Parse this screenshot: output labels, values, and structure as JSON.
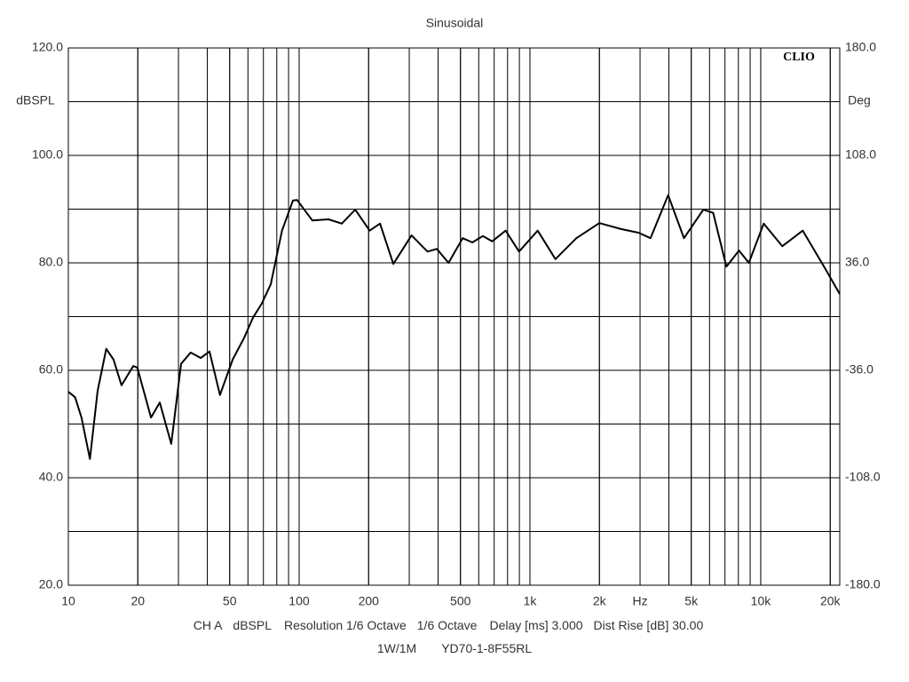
{
  "chart_data": {
    "type": "line",
    "title": "Sinusoidal",
    "logo": "CLIO",
    "y_label": "dBSPL",
    "y2_label": "Deg",
    "x_unit": "Hz",
    "x_unit_at": 3000,
    "x_log": true,
    "grid": true,
    "xlim": [
      10,
      22000
    ],
    "xticks": [
      10,
      20,
      50,
      100,
      200,
      500,
      {
        "value": 1000,
        "label": "1k"
      },
      {
        "value": 2000,
        "label": "2k"
      },
      {
        "value": 5000,
        "label": "5k"
      },
      {
        "value": 10000,
        "label": "10k"
      },
      {
        "value": 20000,
        "label": "20k"
      }
    ],
    "xgrid": [
      20,
      30,
      40,
      50,
      60,
      70,
      80,
      90,
      100,
      200,
      300,
      400,
      500,
      600,
      700,
      800,
      900,
      1000,
      2000,
      3000,
      4000,
      5000,
      6000,
      7000,
      8000,
      9000,
      10000,
      20000
    ],
    "ylim": [
      20,
      120
    ],
    "yticks": [
      {
        "value": 20,
        "label": "20.0"
      },
      {
        "value": 40,
        "label": "40.0"
      },
      {
        "value": 60,
        "label": "60.0"
      },
      {
        "value": 80,
        "label": "80.0"
      },
      {
        "value": 100,
        "label": "100.0"
      },
      {
        "value": 120,
        "label": "120.0"
      }
    ],
    "ygrid": [
      30,
      50,
      70,
      90,
      110
    ],
    "y2lim": [
      -180,
      180
    ],
    "y2ticks": [
      {
        "value": -180,
        "label": "-180.0"
      },
      {
        "value": -108,
        "label": "-108.0"
      },
      {
        "value": -36,
        "label": "-36.0"
      },
      {
        "value": 36,
        "label": "36.0"
      },
      {
        "value": 108,
        "label": "108.0"
      },
      {
        "value": 180,
        "label": "180.0"
      }
    ],
    "footer_items": [
      "CH A",
      "dBSPL",
      "Resolution 1/6 Octave",
      "1/6 Octave",
      "Delay [ms] 3.000",
      "Dist Rise [dB] 30.00"
    ],
    "footer_line2": [
      "1W/1M",
      "YD70-1-8F55RL"
    ],
    "series": [
      {
        "name": "dBSPL",
        "color": "#000000",
        "x": [
          10,
          10.7,
          11.4,
          12.4,
          13.4,
          14.6,
          15.7,
          17.0,
          19.1,
          19.9,
          22.8,
          24.9,
          27.9,
          30.8,
          33.9,
          37.5,
          40.9,
          45.4,
          51.5,
          57.7,
          63.1,
          68.8,
          75.3,
          84.3,
          94,
          98,
          114,
          134,
          153,
          175,
          202,
          224,
          256,
          307,
          360,
          395,
          444,
          511,
          563,
          625,
          686,
          785,
          897,
          1080,
          1290,
          1590,
          2000,
          2480,
          2960,
          3330,
          3970,
          4650,
          5640,
          6220,
          7100,
          8050,
          8880,
          10300,
          12400,
          15200,
          19000,
          22000
        ],
        "values": [
          56.0,
          55.0,
          51.2,
          43.5,
          56.2,
          64.0,
          62.0,
          57.2,
          60.8,
          60.5,
          51.2,
          54.0,
          46.3,
          61.2,
          63.3,
          62.3,
          63.5,
          55.4,
          62.0,
          66.0,
          69.8,
          72.4,
          76.0,
          86.0,
          91.6,
          91.7,
          87.9,
          88.1,
          87.3,
          89.9,
          86.0,
          87.3,
          79.8,
          85.1,
          82.1,
          82.6,
          80.0,
          84.6,
          83.8,
          85.0,
          84.0,
          86.0,
          82.1,
          86.0,
          80.7,
          84.6,
          87.4,
          86.3,
          85.6,
          84.6,
          92.6,
          84.6,
          89.9,
          89.3,
          79.3,
          82.3,
          80.0,
          87.3,
          83.1,
          86.0,
          79.0,
          74.2
        ]
      }
    ]
  }
}
